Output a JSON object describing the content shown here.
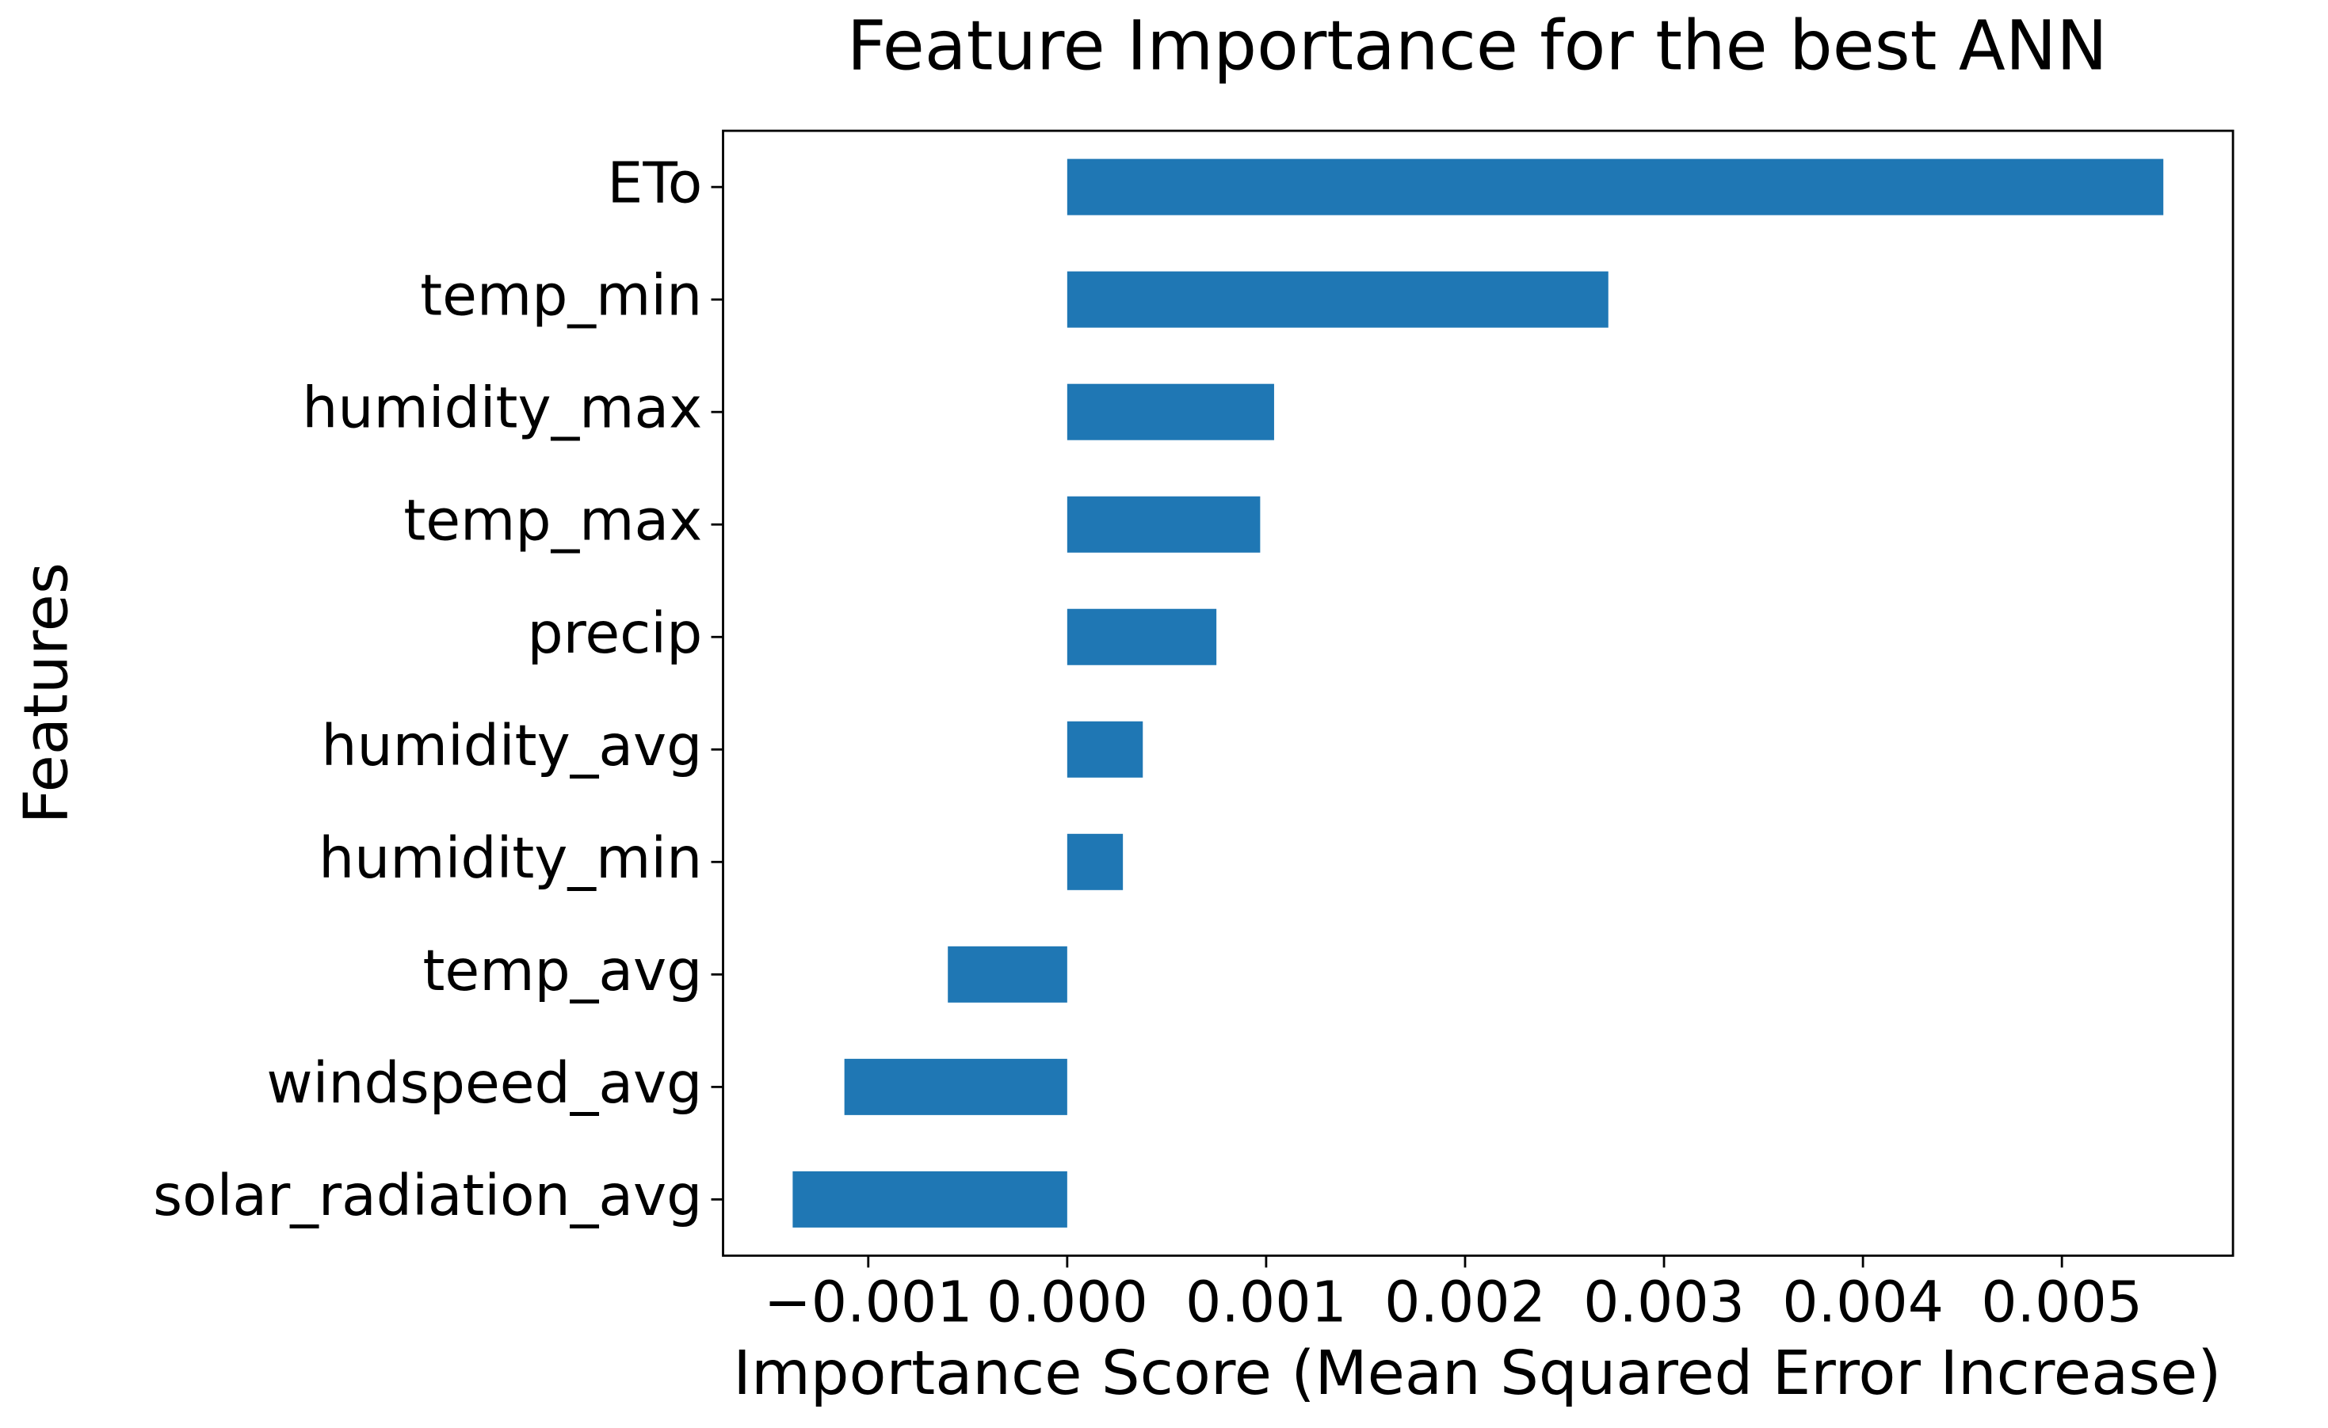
{
  "chart_data": {
    "type": "barh",
    "title": "Feature Importance for the best ANN",
    "x_label": "Importance Score (Mean Squared Error Increase)",
    "y_label": "Features",
    "categories": [
      "ETo",
      "temp_min",
      "humidity_max",
      "temp_max",
      "precip",
      "humidity_avg",
      "humidity_min",
      "temp_avg",
      "windspeed_avg",
      "solar_radiation_avg"
    ],
    "values": [
      0.00551,
      0.00272,
      0.00104,
      0.00097,
      0.00075,
      0.00038,
      0.00028,
      -0.0006,
      -0.00112,
      -0.00138
    ],
    "color": "#1f77b4",
    "xlim": [
      -0.00173,
      0.00586
    ],
    "xticks": [
      {
        "value": -0.001,
        "label": "−0.001"
      },
      {
        "value": 0,
        "label": "0.000"
      },
      0.001,
      0.002,
      0.003,
      0.004,
      0.005
    ],
    "grid": false
  }
}
